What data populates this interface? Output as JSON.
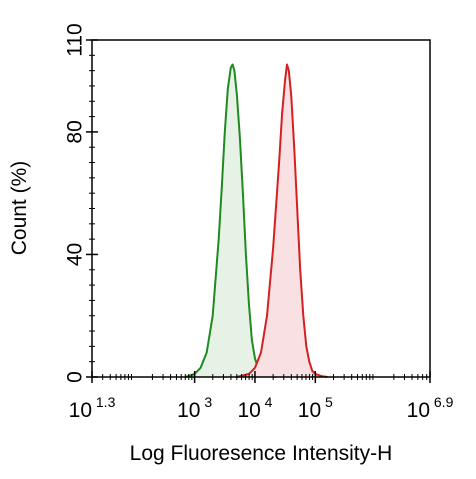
{
  "chart_data": {
    "type": "area",
    "title": "",
    "xlabel": "Log Fluoresence Intensity-H",
    "ylabel": "Count  (%)",
    "x_scale": "log10",
    "xlim": [
      1.3,
      6.9
    ],
    "ylim": [
      0,
      110
    ],
    "grid": false,
    "x_ticks": [
      {
        "base": "10",
        "exp": "1.3",
        "value": 1.3
      },
      {
        "base": "10",
        "exp": "3",
        "value": 3
      },
      {
        "base": "10",
        "exp": "4",
        "value": 4
      },
      {
        "base": "10",
        "exp": "5",
        "value": 5
      },
      {
        "base": "10",
        "exp": "6.9",
        "value": 6.9
      }
    ],
    "y_ticks": [
      {
        "label": "0",
        "value": 0
      },
      {
        "label": "40",
        "value": 40
      },
      {
        "label": "80",
        "value": 80
      },
      {
        "label": "110",
        "value": 110
      }
    ],
    "series": [
      {
        "color": "#1f8a1f",
        "fill": "#e6f2e6",
        "x": [
          2.85,
          3.0,
          3.1,
          3.2,
          3.3,
          3.4,
          3.45,
          3.5,
          3.55,
          3.6,
          3.63,
          3.66,
          3.7,
          3.75,
          3.8,
          3.85,
          3.9,
          3.95,
          4.0,
          4.05,
          4.1,
          4.2,
          4.35
        ],
        "y": [
          0,
          1,
          3,
          8,
          20,
          45,
          62,
          80,
          94,
          101,
          102,
          100,
          92,
          78,
          60,
          40,
          24,
          12,
          6,
          3,
          1.5,
          0.5,
          0
        ]
      },
      {
        "color": "#d42020",
        "fill": "#f9e0e2",
        "x": [
          3.7,
          3.9,
          4.0,
          4.1,
          4.2,
          4.3,
          4.4,
          4.45,
          4.5,
          4.53,
          4.56,
          4.6,
          4.65,
          4.7,
          4.75,
          4.8,
          4.85,
          4.9,
          4.95,
          5.0,
          5.1,
          5.2
        ],
        "y": [
          0,
          1,
          3,
          8,
          20,
          42,
          70,
          86,
          97,
          102,
          100,
          92,
          75,
          55,
          35,
          20,
          10,
          5,
          2,
          1,
          0.3,
          0
        ]
      }
    ]
  }
}
